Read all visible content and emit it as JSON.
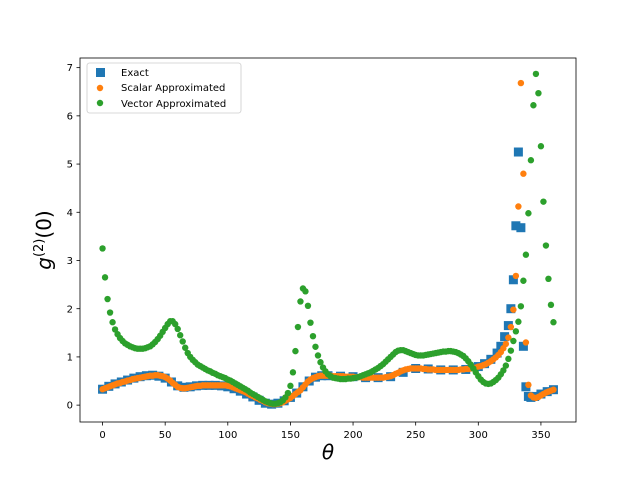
{
  "chart_data": {
    "type": "scatter",
    "title": "",
    "xlabel": "θ",
    "ylabel_base": "g",
    "ylabel_sup": "(2)",
    "ylabel_arg": "(0)",
    "xlim": [
      -18,
      378
    ],
    "ylim": [
      -0.35,
      7.2
    ],
    "xticks": [
      0,
      50,
      100,
      150,
      200,
      250,
      300,
      350
    ],
    "yticks": [
      0,
      1,
      2,
      3,
      4,
      5,
      6,
      7
    ],
    "grid": false,
    "legend_position": "upper-left",
    "series": [
      {
        "name": "Exact",
        "marker": "square",
        "color": "#1f77b4",
        "x": [
          0,
          5,
          10,
          15,
          20,
          25,
          30,
          35,
          40,
          45,
          50,
          55,
          60,
          65,
          70,
          75,
          80,
          85,
          90,
          95,
          100,
          105,
          110,
          115,
          120,
          125,
          130,
          135,
          140,
          145,
          150,
          155,
          160,
          165,
          170,
          175,
          180,
          190,
          200,
          210,
          220,
          230,
          240,
          250,
          260,
          270,
          280,
          290,
          300,
          305,
          310,
          315,
          318,
          321,
          324,
          326,
          328,
          330,
          332,
          334,
          336,
          338,
          340,
          342,
          345,
          350,
          355,
          360
        ],
        "y": [
          0.33,
          0.39,
          0.44,
          0.48,
          0.52,
          0.56,
          0.59,
          0.61,
          0.62,
          0.6,
          0.56,
          0.48,
          0.4,
          0.37,
          0.38,
          0.4,
          0.41,
          0.41,
          0.41,
          0.4,
          0.38,
          0.34,
          0.29,
          0.23,
          0.17,
          0.1,
          0.04,
          0.02,
          0.04,
          0.09,
          0.16,
          0.25,
          0.38,
          0.5,
          0.58,
          0.61,
          0.61,
          0.6,
          0.59,
          0.57,
          0.57,
          0.59,
          0.68,
          0.76,
          0.75,
          0.73,
          0.73,
          0.74,
          0.8,
          0.86,
          0.95,
          1.08,
          1.22,
          1.42,
          1.65,
          2.0,
          2.6,
          3.72,
          5.25,
          3.68,
          1.22,
          0.38,
          0.18,
          0.16,
          0.18,
          0.23,
          0.28,
          0.32
        ]
      },
      {
        "name": "Scalar Approximated",
        "marker": "circle",
        "color": "#ff7f0e",
        "x": [
          0,
          2,
          4,
          6,
          8,
          10,
          12,
          14,
          16,
          18,
          20,
          22,
          24,
          26,
          28,
          30,
          32,
          34,
          36,
          38,
          40,
          42,
          44,
          46,
          48,
          50,
          52,
          54,
          56,
          58,
          60,
          62,
          64,
          66,
          68,
          70,
          72,
          74,
          76,
          78,
          80,
          82,
          84,
          86,
          88,
          90,
          92,
          94,
          96,
          98,
          100,
          102,
          104,
          106,
          108,
          110,
          112,
          114,
          116,
          118,
          120,
          122,
          124,
          126,
          128,
          130,
          132,
          134,
          136,
          138,
          140,
          142,
          144,
          146,
          148,
          150,
          152,
          154,
          156,
          158,
          160,
          162,
          164,
          166,
          168,
          170,
          172,
          174,
          176,
          178,
          180,
          182,
          184,
          186,
          188,
          190,
          192,
          194,
          196,
          198,
          200,
          202,
          204,
          206,
          208,
          210,
          212,
          214,
          216,
          218,
          220,
          222,
          224,
          226,
          228,
          230,
          232,
          234,
          236,
          238,
          240,
          242,
          244,
          246,
          248,
          250,
          252,
          254,
          256,
          258,
          260,
          262,
          264,
          266,
          268,
          270,
          272,
          274,
          276,
          278,
          280,
          282,
          284,
          286,
          288,
          290,
          292,
          294,
          296,
          298,
          300,
          302,
          304,
          306,
          308,
          310,
          312,
          314,
          316,
          318,
          320,
          322,
          324,
          326,
          328,
          330,
          332,
          334,
          336,
          338,
          340,
          342,
          344,
          346,
          348,
          350,
          352,
          354,
          356,
          358,
          360
        ],
        "y": [
          0.33,
          0.35,
          0.37,
          0.39,
          0.41,
          0.43,
          0.45,
          0.46,
          0.48,
          0.49,
          0.51,
          0.52,
          0.54,
          0.55,
          0.56,
          0.57,
          0.58,
          0.59,
          0.6,
          0.61,
          0.61,
          0.62,
          0.62,
          0.61,
          0.6,
          0.58,
          0.55,
          0.51,
          0.46,
          0.42,
          0.38,
          0.36,
          0.35,
          0.35,
          0.36,
          0.37,
          0.38,
          0.39,
          0.4,
          0.4,
          0.41,
          0.41,
          0.41,
          0.41,
          0.41,
          0.41,
          0.41,
          0.41,
          0.41,
          0.41,
          0.4,
          0.39,
          0.37,
          0.35,
          0.33,
          0.31,
          0.29,
          0.27,
          0.24,
          0.21,
          0.19,
          0.16,
          0.14,
          0.11,
          0.09,
          0.06,
          0.04,
          0.03,
          0.02,
          0.02,
          0.03,
          0.04,
          0.06,
          0.09,
          0.12,
          0.15,
          0.19,
          0.23,
          0.27,
          0.31,
          0.37,
          0.43,
          0.49,
          0.53,
          0.56,
          0.58,
          0.6,
          0.61,
          0.61,
          0.61,
          0.61,
          0.61,
          0.6,
          0.6,
          0.6,
          0.6,
          0.6,
          0.59,
          0.59,
          0.59,
          0.59,
          0.58,
          0.58,
          0.58,
          0.57,
          0.57,
          0.57,
          0.57,
          0.57,
          0.57,
          0.57,
          0.57,
          0.57,
          0.58,
          0.59,
          0.6,
          0.62,
          0.65,
          0.67,
          0.7,
          0.72,
          0.74,
          0.75,
          0.76,
          0.76,
          0.76,
          0.76,
          0.76,
          0.75,
          0.75,
          0.74,
          0.74,
          0.74,
          0.73,
          0.73,
          0.73,
          0.73,
          0.73,
          0.73,
          0.73,
          0.73,
          0.73,
          0.73,
          0.74,
          0.74,
          0.75,
          0.75,
          0.76,
          0.77,
          0.78,
          0.8,
          0.81,
          0.83,
          0.85,
          0.88,
          0.91,
          0.95,
          0.99,
          1.04,
          1.1,
          1.18,
          1.27,
          1.4,
          1.62,
          1.98,
          2.68,
          4.12,
          6.68,
          4.8,
          1.3,
          0.42,
          0.2,
          0.16,
          0.15,
          0.17,
          0.2,
          0.23,
          0.26,
          0.28,
          0.3,
          0.32
        ]
      },
      {
        "name": "Vector Approximated",
        "marker": "circle",
        "color": "#2ca02c",
        "x": [
          0,
          2,
          4,
          6,
          8,
          10,
          12,
          14,
          16,
          18,
          20,
          22,
          24,
          26,
          28,
          30,
          32,
          34,
          36,
          38,
          40,
          42,
          44,
          46,
          48,
          50,
          52,
          54,
          56,
          58,
          60,
          62,
          64,
          66,
          68,
          70,
          72,
          74,
          76,
          78,
          80,
          82,
          84,
          86,
          88,
          90,
          92,
          94,
          96,
          98,
          100,
          102,
          104,
          106,
          108,
          110,
          112,
          114,
          116,
          118,
          120,
          122,
          124,
          126,
          128,
          130,
          132,
          134,
          136,
          138,
          140,
          142,
          144,
          146,
          148,
          150,
          152,
          154,
          156,
          158,
          160,
          162,
          164,
          166,
          168,
          170,
          172,
          174,
          176,
          178,
          180,
          182,
          184,
          186,
          188,
          190,
          192,
          194,
          196,
          198,
          200,
          202,
          204,
          206,
          208,
          210,
          212,
          214,
          216,
          218,
          220,
          222,
          224,
          226,
          228,
          230,
          232,
          234,
          236,
          238,
          240,
          242,
          244,
          246,
          248,
          250,
          252,
          254,
          256,
          258,
          260,
          262,
          264,
          266,
          268,
          270,
          272,
          274,
          276,
          278,
          280,
          282,
          284,
          286,
          288,
          290,
          292,
          294,
          296,
          298,
          300,
          302,
          304,
          306,
          308,
          310,
          312,
          314,
          316,
          318,
          320,
          322,
          324,
          326,
          328,
          330,
          332,
          334,
          336,
          338,
          340,
          342,
          344,
          346,
          348,
          350,
          352,
          354,
          356,
          358,
          360
        ],
        "y": [
          3.25,
          2.65,
          2.2,
          1.92,
          1.72,
          1.57,
          1.47,
          1.39,
          1.33,
          1.28,
          1.25,
          1.22,
          1.2,
          1.18,
          1.17,
          1.17,
          1.17,
          1.18,
          1.2,
          1.22,
          1.26,
          1.31,
          1.37,
          1.44,
          1.52,
          1.6,
          1.68,
          1.74,
          1.74,
          1.68,
          1.58,
          1.45,
          1.32,
          1.19,
          1.08,
          1.0,
          0.94,
          0.89,
          0.84,
          0.81,
          0.78,
          0.75,
          0.72,
          0.7,
          0.67,
          0.65,
          0.62,
          0.6,
          0.58,
          0.56,
          0.53,
          0.51,
          0.48,
          0.45,
          0.42,
          0.39,
          0.36,
          0.33,
          0.3,
          0.26,
          0.23,
          0.2,
          0.17,
          0.14,
          0.11,
          0.08,
          0.06,
          0.04,
          0.03,
          0.03,
          0.04,
          0.06,
          0.1,
          0.16,
          0.25,
          0.4,
          0.68,
          1.12,
          1.62,
          2.15,
          2.42,
          2.36,
          2.06,
          1.71,
          1.43,
          1.21,
          1.03,
          0.89,
          0.78,
          0.7,
          0.64,
          0.6,
          0.57,
          0.56,
          0.55,
          0.54,
          0.54,
          0.54,
          0.55,
          0.55,
          0.56,
          0.57,
          0.58,
          0.6,
          0.62,
          0.64,
          0.66,
          0.68,
          0.71,
          0.74,
          0.77,
          0.81,
          0.85,
          0.9,
          0.95,
          1.0,
          1.05,
          1.1,
          1.13,
          1.14,
          1.14,
          1.12,
          1.1,
          1.08,
          1.06,
          1.04,
          1.03,
          1.03,
          1.03,
          1.04,
          1.05,
          1.06,
          1.07,
          1.08,
          1.09,
          1.1,
          1.11,
          1.11,
          1.12,
          1.12,
          1.11,
          1.1,
          1.08,
          1.05,
          1.02,
          0.97,
          0.91,
          0.84,
          0.76,
          0.68,
          0.6,
          0.53,
          0.48,
          0.45,
          0.44,
          0.45,
          0.48,
          0.52,
          0.57,
          0.64,
          0.72,
          0.82,
          0.96,
          1.13,
          1.33,
          1.53,
          1.73,
          2.05,
          2.58,
          3.12,
          3.98,
          5.08,
          6.22,
          6.87,
          6.47,
          5.37,
          4.22,
          3.31,
          2.62,
          2.08,
          1.72
        ]
      }
    ]
  }
}
